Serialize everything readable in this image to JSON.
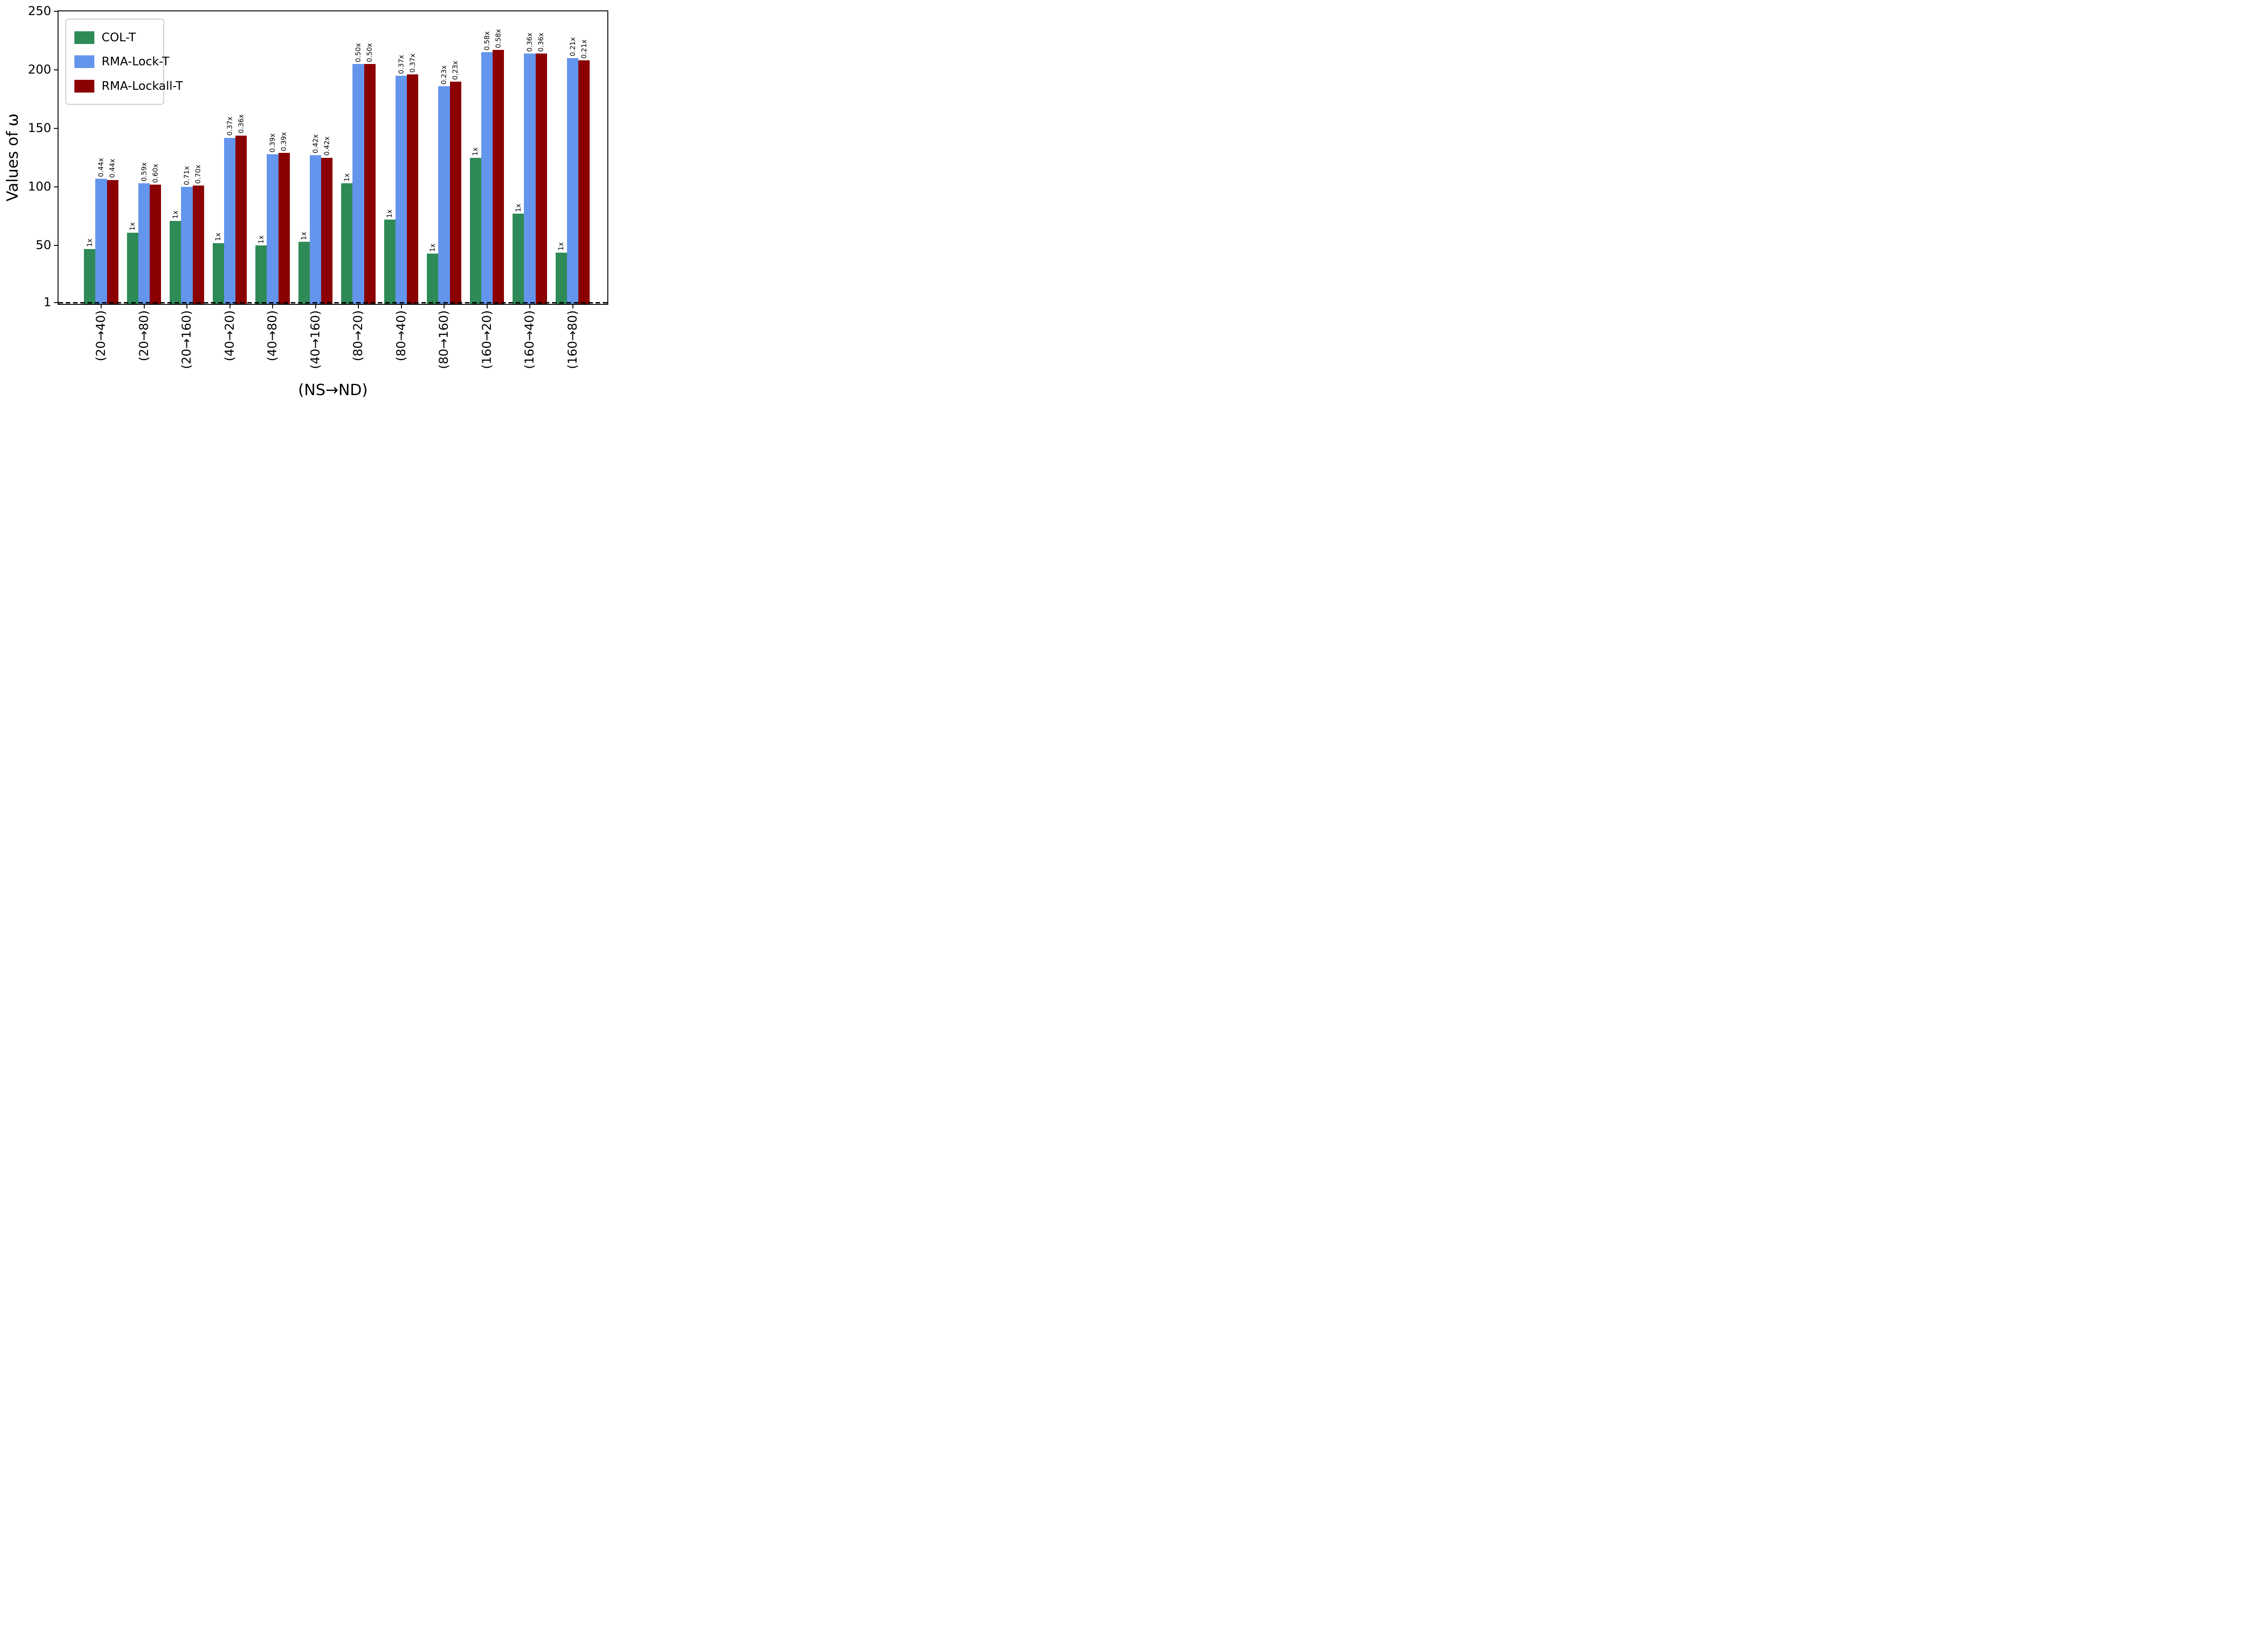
{
  "chart_data": {
    "type": "bar",
    "title": "",
    "xlabel": "(NS→ND)",
    "ylabel": "Values of ω",
    "ylim": [
      0,
      250
    ],
    "yticks": [
      1,
      50,
      100,
      150,
      200,
      250
    ],
    "grid": false,
    "legend_position": "upper-left",
    "reference_line": {
      "y": 1,
      "style": "dashed",
      "color": "#000000"
    },
    "categories": [
      "(20→40)",
      "(20→80)",
      "(20→160)",
      "(40→20)",
      "(40→80)",
      "(40→160)",
      "(80→20)",
      "(80→40)",
      "(80→160)",
      "(160→20)",
      "(160→40)",
      "(160→80)"
    ],
    "series": [
      {
        "name": "COL-T",
        "color": "#2e8b57",
        "values": [
          47,
          61,
          71,
          52,
          50,
          53,
          103,
          72,
          43,
          125,
          77,
          44
        ],
        "bar_labels": [
          "1x",
          "1x",
          "1x",
          "1x",
          "1x",
          "1x",
          "1x",
          "1x",
          "1x",
          "1x",
          "1x",
          "1x"
        ]
      },
      {
        "name": "RMA-Lock-T",
        "color": "#6495ed",
        "values": [
          107,
          103,
          100,
          142,
          128,
          127,
          205,
          195,
          186,
          215,
          214,
          210
        ],
        "bar_labels": [
          "0.44x",
          "0.59x",
          "0.71x",
          "0.37x",
          "0.39x",
          "0.42x",
          "0.50x",
          "0.37x",
          "0.23x",
          "0.58x",
          "0.36x",
          "0.21x"
        ]
      },
      {
        "name": "RMA-Lockall-T",
        "color": "#8b0000",
        "values": [
          106,
          102,
          101,
          144,
          129,
          125,
          205,
          196,
          190,
          217,
          214,
          208
        ],
        "bar_labels": [
          "0.44x",
          "0.60x",
          "0.70x",
          "0.36x",
          "0.39x",
          "0.42x",
          "0.50x",
          "0.37x",
          "0.23x",
          "0.58x",
          "0.36x",
          "0.21x"
        ]
      }
    ]
  }
}
